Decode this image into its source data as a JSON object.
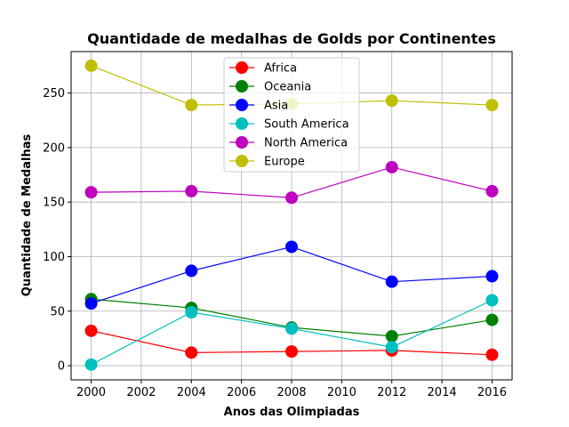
{
  "chart_data": {
    "type": "line",
    "title": "Quantidade de medalhas de Golds por Continentes",
    "xlabel": "Anos das Olimpiadas",
    "ylabel": "Quantidade de Medalhas",
    "x": [
      2000,
      2004,
      2008,
      2012,
      2016
    ],
    "xlim": [
      1999.2,
      2016.8
    ],
    "ylim": [
      -13,
      288
    ],
    "xticks": [
      2000,
      2002,
      2004,
      2006,
      2008,
      2010,
      2012,
      2014,
      2016
    ],
    "yticks": [
      0,
      50,
      100,
      150,
      200,
      250
    ],
    "grid": true,
    "legend_position": "top-center",
    "series": [
      {
        "name": "Africa",
        "color": "#ff0000",
        "values": [
          32,
          12,
          13,
          14,
          10
        ]
      },
      {
        "name": "Oceania",
        "color": "#008000",
        "values": [
          61,
          53,
          35,
          27,
          42
        ]
      },
      {
        "name": "Asia",
        "color": "#0000ff",
        "values": [
          57,
          87,
          109,
          77,
          82
        ]
      },
      {
        "name": "South America",
        "color": "#00bfbf",
        "values": [
          1,
          49,
          34,
          17,
          60
        ]
      },
      {
        "name": "North America",
        "color": "#bf00bf",
        "values": [
          159,
          160,
          154,
          182,
          160
        ]
      },
      {
        "name": "Europe",
        "color": "#bfbf00",
        "values": [
          275,
          239,
          240,
          243,
          239
        ]
      }
    ]
  }
}
